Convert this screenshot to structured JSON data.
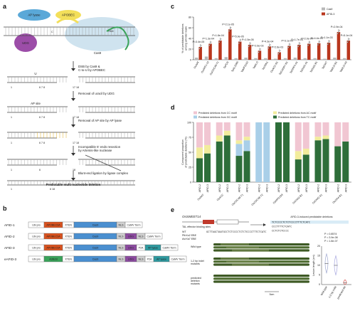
{
  "panels": {
    "a": {
      "letter": "a",
      "labels": {
        "ap_lyase": "AP lyase",
        "apobec": "APOBEC",
        "udg": "UDG",
        "cas9": "Cas9",
        "pam": "PAM",
        "c_top": "C",
        "u_mark": "U",
        "ap_site": "AP site"
      },
      "steps": [
        "DSB by Cas9 &\nC-to-U by APOBEC",
        "Removal of uracil by UDG",
        "Removal of AP site by AP lyase",
        "Incompatible 5' ends resection\nby Artemis-like nuclease",
        "Blunt-end ligation by ligase complex",
        "Predictable multi-nucleotide deletion"
      ],
      "numbers": {
        "row1": [
          "1",
          "6 7 8",
          "17 18"
        ],
        "row2": [
          "1",
          "6 7 8",
          "17 18"
        ],
        "row3": [
          "1",
          "6 7 8",
          "17 18"
        ],
        "row4": [
          "1",
          "6",
          "18"
        ],
        "row5": [
          "1",
          "6 18"
        ]
      }
    },
    "b": {
      "letter": "b",
      "rows": [
        {
          "name": "AFID-1",
          "blocks": [
            "Ubi pro",
            "APOBEC3A",
            "XTEN",
            "Cas9",
            "NLS",
            "CaMV Term"
          ]
        },
        {
          "name": "AFID-2",
          "blocks": [
            "Ubi pro",
            "APOBEC3A",
            "XTEN",
            "Cas9",
            "NLS",
            "UDG",
            "NLS",
            "CaMV Term"
          ]
        },
        {
          "name": "AFID-3",
          "blocks": [
            "Ubi pro",
            "APOBEC3A",
            "XTEN",
            "Cas9",
            "NLS",
            "UDG",
            "P2A",
            "AP lyase",
            "CaMV Term"
          ]
        },
        {
          "name": "eAFID-3",
          "blocks": [
            "Ubi pro",
            "A3Bctd",
            "XTEN",
            "Cas9",
            "NLS",
            "UDG",
            "NLS",
            "P2A",
            "AP lyase",
            "CaMV Term"
          ]
        }
      ],
      "colors": {
        "Ubi pro": "#ffffff",
        "APOBEC3A": "#d9521e",
        "A3Bctd": "#3aa35a",
        "XTEN": "#ffffff",
        "Cas9": "#4a8fd0",
        "NLS": "#d0d0d0",
        "UDG": "#8c4ba0",
        "P2A": "#ffffff",
        "AP lyase": "#2f9aa0",
        "CaMV Term": "#ffffff"
      }
    },
    "c": {
      "letter": "c",
      "legend": [
        "Cas9",
        "AFID-3"
      ],
      "colors": {
        "Cas9": "#b8b8b8",
        "AFID-3": "#b9361d"
      },
      "chart_data": {
        "type": "bar",
        "ylabel": "% of predictable deletions\namong all indel reads",
        "ylim": [
          0,
          80
        ],
        "yticks": [
          "0",
          "20",
          "40",
          "60",
          "80"
        ],
        "categories": [
          "OsAAT",
          "OsAAT1-19",
          "OsCDC48-T1",
          "TaPDS",
          "TaALS385",
          "TaMFS193",
          "TaMLO",
          "TaVRN1",
          "OsACC-B1",
          "TaGASR7-B1",
          "TaGRF4-A1",
          "TaGW2-A1",
          "TaGW2-B1",
          "TaGW7",
          "TaMLO-B1",
          "TaMLO-A3"
        ],
        "series": [
          {
            "name": "Cas9",
            "values": [
              4,
              6,
              3,
              5,
              3,
              4,
              3,
              3,
              2,
              3,
              4,
              3,
              3,
              2,
              4,
              3
            ]
          },
          {
            "name": "AFID-3",
            "values": [
              24,
              30,
              36,
              57,
              34,
              28,
              17,
              25,
              14,
              26,
              28,
              30,
              31,
              32,
              52,
              36
            ]
          }
        ],
        "pvalues": [
          "P=3.4e-05",
          "P=1.3e-04",
          "P=1.8e-04",
          "P=2.1e-05",
          "P=5.9e-05",
          "P=1.5e-05",
          "P=2.6e-03",
          "P=4.3e-04",
          "P=2.6e-03",
          "P=3.1e-04",
          "P=1.7e-04",
          "P=2.0e-04",
          "P=4.4e-04",
          "P=1.1e-03",
          "P=2.9e-04",
          "P=5.1e-04"
        ]
      }
    },
    "d": {
      "letter": "d",
      "legend": [
        "Predicted deletions from CC motif",
        "Predicted deletions from AC motif",
        "Predicted deletions from GC motif",
        "Predicted deletions from TC motif"
      ],
      "colors": {
        "CC": "#f1c6d2",
        "AC": "#f2ec9c",
        "GC": "#a9cfe8",
        "TC": "#2e6e3a",
        "Other": "#ffffff"
      },
      "chart_data": {
        "type": "bar",
        "stacked": true,
        "ylabel": "Component proportion\nof predictable deletions (%)",
        "ylim": [
          0,
          100
        ],
        "yticks": [
          "0",
          "25",
          "50",
          "75",
          "100"
        ],
        "groups": [
          "OsAAT",
          "OsACC",
          "OsCDC48-T1",
          "OsCDC48-T2",
          "OsMFS193",
          "OsGW2-B1",
          "OsGW2-A1",
          "OsGR4-B1"
        ],
        "bar_labels": [
          "AFID-2",
          "AFID-3",
          "AFID-2",
          "AFID-3",
          "AFID-2",
          "AFID-3",
          "AFID-2",
          "AFID-3",
          "AFID-2",
          "AFID-3",
          "AFID-2",
          "AFID-3",
          "AFID-2",
          "AFID-3",
          "AFID-2",
          "AFID-3"
        ],
        "series": [
          {
            "name": "TC",
            "values": [
              40,
              48,
              68,
              78,
              44,
              52,
              0,
              0,
              100,
              100,
              38,
              46,
              70,
              72,
              60,
              68
            ]
          },
          {
            "name": "GC",
            "values": [
              0,
              0,
              0,
              0,
              20,
              18,
              100,
              100,
              0,
              0,
              0,
              0,
              0,
              0,
              0,
              0
            ]
          },
          {
            "name": "AC",
            "values": [
              18,
              14,
              10,
              8,
              6,
              6,
              0,
              0,
              0,
              0,
              14,
              10,
              6,
              6,
              0,
              0
            ]
          },
          {
            "name": "CC",
            "values": [
              42,
              38,
              22,
              14,
              30,
              24,
              0,
              0,
              0,
              0,
              48,
              44,
              24,
              22,
              40,
              32
            ]
          }
        ]
      }
    },
    "e": {
      "letter": "e",
      "gene": "OsSWEET14",
      "tal_label": "TAL effector binding sites",
      "seq_title": "AFID-3-induced predictable deletions",
      "seq_rows": [
        "GCTTAGCTAATGCCTCTCCCCTCTCTCCCCTTTCTCATC",
        "TCTCCCCTCTCTCCCCTTTCTCATC",
        "CCCTTTTCTCATC",
        "CCTCTCTCCCC"
      ],
      "seq_left": [
        "WT",
        "PthXo2 EBE",
        "AvrXa7 EBE"
      ],
      "row_labels": [
        "Wild type",
        "1-2 bp indel mutants",
        "predicted deletion mutants"
      ],
      "scale": "5cm",
      "violin": {
        "ylabel": "Lesion length (cm)",
        "ylim": [
          0,
          20
        ],
        "yticks": [
          "0",
          "5",
          "10",
          "15",
          "20"
        ],
        "categories": [
          "Wild type",
          "1-2 bp indel",
          "predicted del"
        ],
        "medians": [
          11,
          10,
          1
        ],
        "pvalues": [
          "P = 0.8574",
          "P = 3.9e-08",
          "P = 1.8e-07"
        ]
      }
    }
  }
}
